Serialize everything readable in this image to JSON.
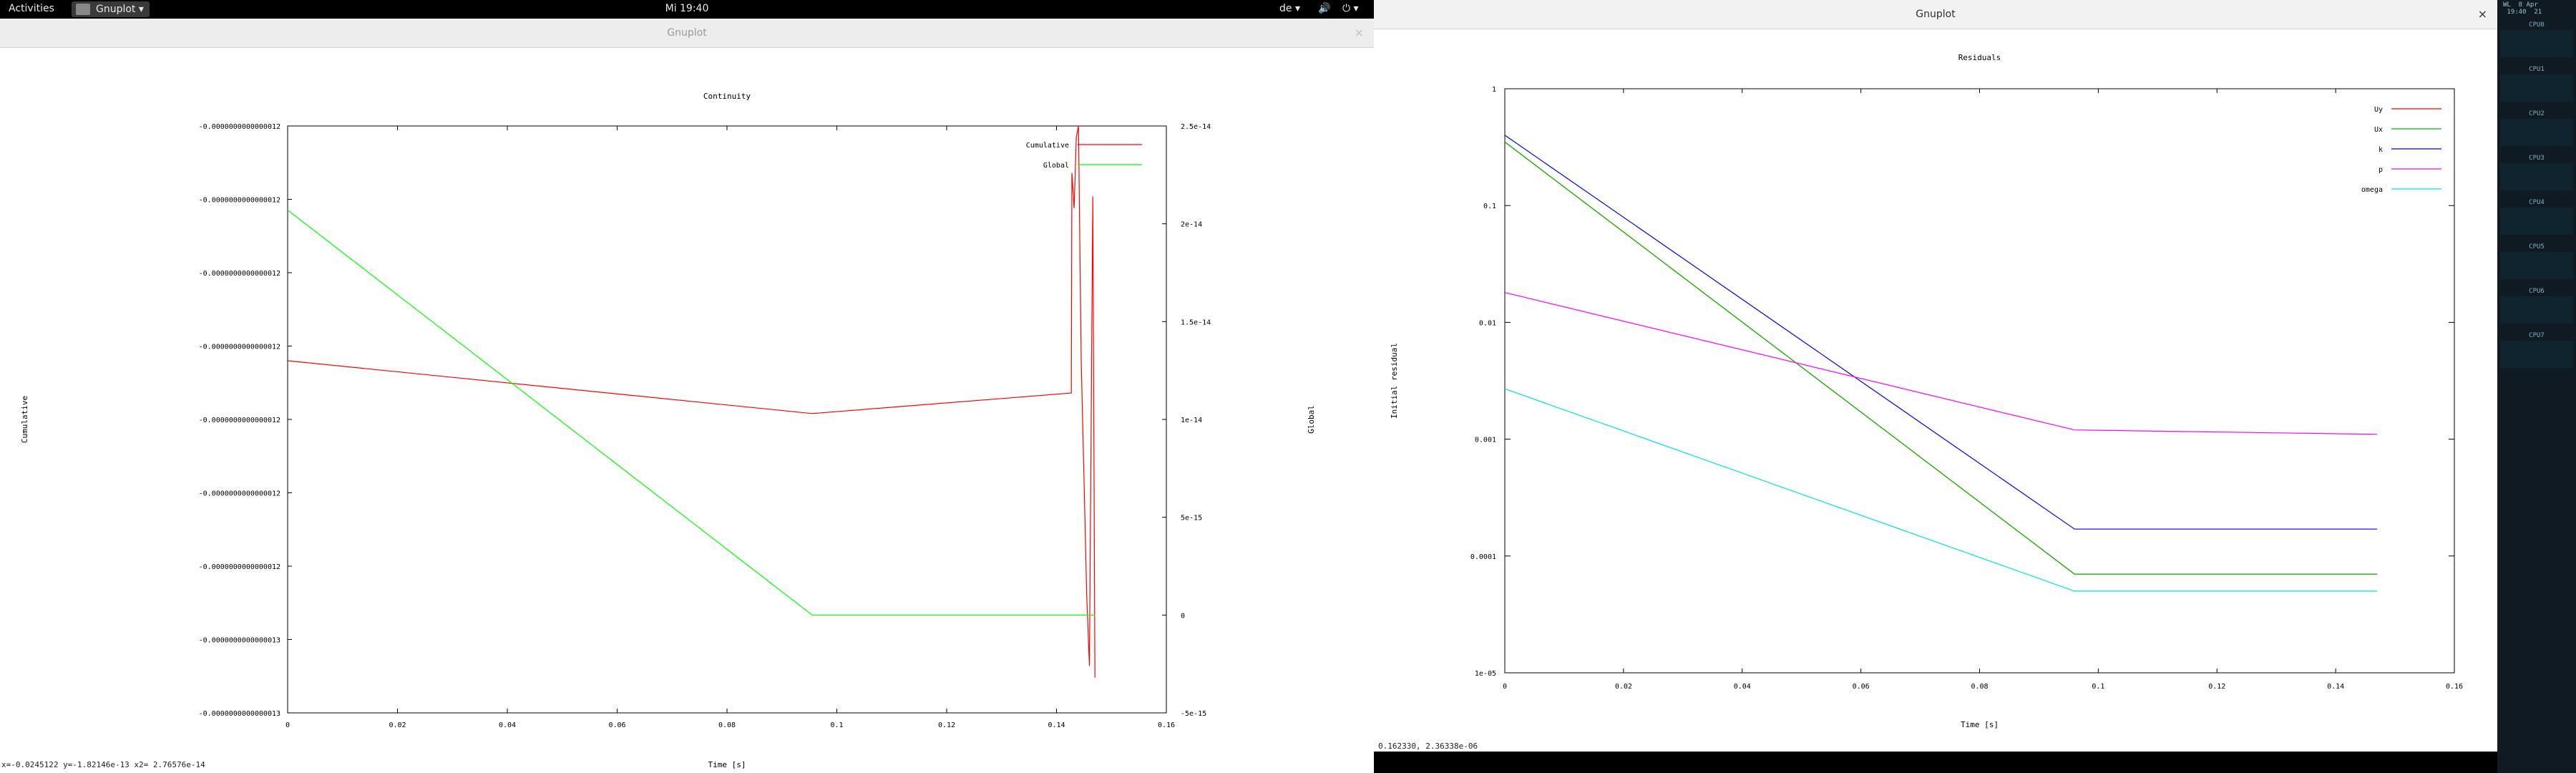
{
  "topbar": {
    "activities": "Activities",
    "app_menu": "Gnuplot ▾",
    "clock": "Mi 19:40",
    "lang": "de ▾",
    "volume_icon": "speaker-icon",
    "power_icon": "power-icon"
  },
  "windows": [
    {
      "title": "Gnuplot",
      "status": "x=-0.0245122 y=-1.82146e-13 x2= 2.76576e-14",
      "close": "×"
    },
    {
      "title": "Gnuplot",
      "status": "0.162330,  2.36338e-06",
      "close": "×"
    }
  ],
  "sidepanel": {
    "clock": "WL  8 Apr\n 19:40  21",
    "cpus": [
      "CPU0",
      "CPU1",
      "CPU2",
      "CPU3",
      "CPU4",
      "CPU5",
      "CPU6",
      "CPU7"
    ]
  },
  "chart_data": [
    {
      "type": "line",
      "title": "Continuity",
      "xlabel": "Time [s]",
      "ylabel": "Cumulative",
      "y2label": "Global",
      "xlim": [
        0,
        0.16
      ],
      "xticks": [
        "0",
        "0.02",
        "0.04",
        "0.06",
        "0.08",
        "0.1",
        "0.12",
        "0.14",
        "0.16"
      ],
      "yticks": [
        "-0.0000000000000012",
        "-0.0000000000000012",
        "-0.0000000000000012",
        "-0.0000000000000012",
        "-0.0000000000000012",
        "-0.0000000000000012",
        "-0.0000000000000012",
        "-0.0000000000000013",
        "-0.0000000000000013"
      ],
      "y2lim": [
        -5e-15,
        2.5e-14
      ],
      "y2ticks": [
        "-5e-15",
        "0",
        "5e-15",
        "1e-14",
        "1.5e-14",
        "2e-14",
        "2.5e-14"
      ],
      "legend": "top-right",
      "series": [
        {
          "name": "Cumulative",
          "color": "#ff0000",
          "axis": "y",
          "points": [
            [
              0,
              0.6
            ],
            [
              0.0955,
              0.51
            ],
            [
              0.1427,
              0.545
            ],
            [
              0.1428,
              0.92
            ],
            [
              0.1432,
              0.86
            ],
            [
              0.1436,
              0.98
            ],
            [
              0.144,
              1.0
            ],
            [
              0.1445,
              0.6
            ],
            [
              0.145,
              0.4
            ],
            [
              0.1455,
              0.2
            ],
            [
              0.146,
              0.08
            ],
            [
              0.1466,
              0.88
            ],
            [
              0.147,
              0.06
            ]
          ]
        },
        {
          "name": "Global",
          "color": "#00ff00",
          "axis": "y2",
          "points": [
            [
              0,
              2.07e-14
            ],
            [
              0.0955,
              0
            ],
            [
              0.145,
              0
            ],
            [
              0.147,
              0
            ]
          ]
        }
      ]
    },
    {
      "type": "line",
      "title": "Residuals",
      "xlabel": "Time [s]",
      "ylabel": "Initial residual",
      "xlim": [
        0,
        0.16
      ],
      "ylim": [
        1e-05,
        1
      ],
      "yscale": "log",
      "xticks": [
        "0",
        "0.02",
        "0.04",
        "0.06",
        "0.08",
        "0.1",
        "0.12",
        "0.14",
        "0.16"
      ],
      "yticks": [
        "1e-05",
        "0.0001",
        "0.001",
        "0.01",
        "0.1",
        "1"
      ],
      "legend": "top-right",
      "series": [
        {
          "name": "Uy",
          "color": "#ff0000",
          "points": [
            [
              0,
              0.35
            ],
            [
              0.096,
              7e-05
            ],
            [
              0.147,
              7e-05
            ]
          ]
        },
        {
          "name": "Ux",
          "color": "#00c000",
          "points": [
            [
              0,
              0.35
            ],
            [
              0.096,
              7e-05
            ],
            [
              0.147,
              7e-05
            ]
          ]
        },
        {
          "name": "k",
          "color": "#0000ff",
          "points": [
            [
              0,
              0.4
            ],
            [
              0.096,
              0.00017
            ],
            [
              0.147,
              0.00017
            ]
          ]
        },
        {
          "name": "p",
          "color": "#ff00ff",
          "points": [
            [
              0,
              0.018
            ],
            [
              0.096,
              0.0012
            ],
            [
              0.147,
              0.0011
            ]
          ]
        },
        {
          "name": "omega",
          "color": "#00e0e0",
          "points": [
            [
              0,
              0.0027
            ],
            [
              0.096,
              5e-05
            ],
            [
              0.147,
              5e-05
            ]
          ]
        }
      ]
    }
  ]
}
